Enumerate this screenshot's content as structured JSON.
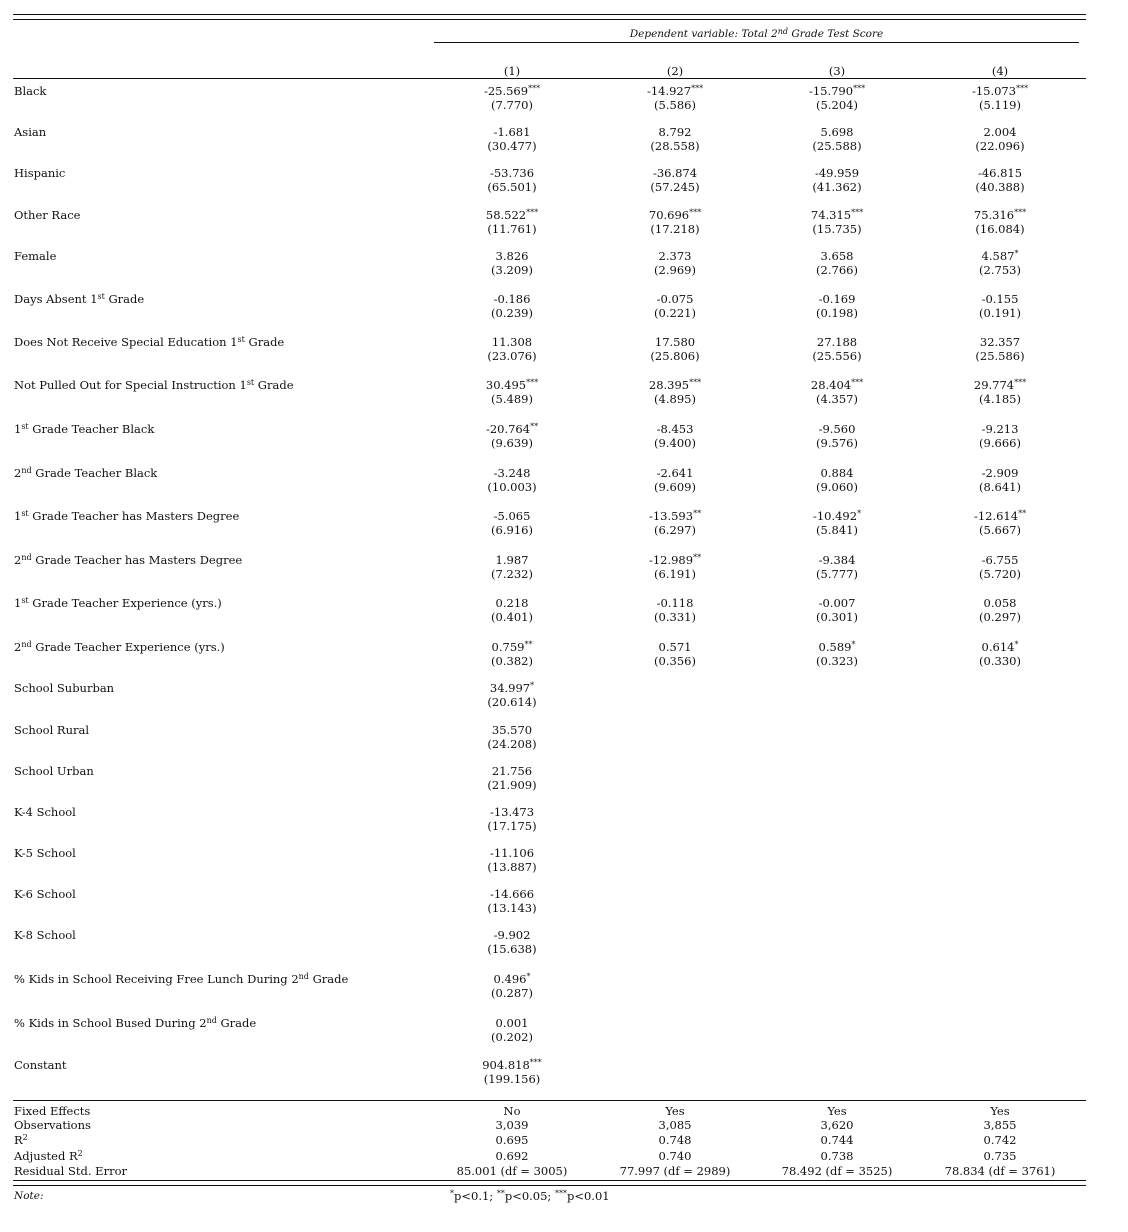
{
  "header": {
    "dependent_variable": "Dependent variable: Total 2nd Grade Test Score",
    "columns": [
      "(1)",
      "(2)",
      "(3)",
      "(4)"
    ]
  },
  "rows": [
    {
      "label": "Black",
      "cells": [
        [
          "-25.569***",
          "(7.770)"
        ],
        [
          "-14.927***",
          "(5.586)"
        ],
        [
          "-15.790***",
          "(5.204)"
        ],
        [
          "-15.073***",
          "(5.119)"
        ]
      ]
    },
    {
      "label": "Asian",
      "cells": [
        [
          "-1.681",
          "(30.477)"
        ],
        [
          "8.792",
          "(28.558)"
        ],
        [
          "5.698",
          "(25.588)"
        ],
        [
          "2.004",
          "(22.096)"
        ]
      ]
    },
    {
      "label": "Hispanic",
      "cells": [
        [
          "-53.736",
          "(65.501)"
        ],
        [
          "-36.874",
          "(57.245)"
        ],
        [
          "-49.959",
          "(41.362)"
        ],
        [
          "-46.815",
          "(40.388)"
        ]
      ]
    },
    {
      "label": "Other Race",
      "cells": [
        [
          "58.522***",
          "(11.761)"
        ],
        [
          "70.696***",
          "(17.218)"
        ],
        [
          "74.315***",
          "(15.735)"
        ],
        [
          "75.316***",
          "(16.084)"
        ]
      ]
    },
    {
      "label": "Female",
      "cells": [
        [
          "3.826",
          "(3.209)"
        ],
        [
          "2.373",
          "(2.969)"
        ],
        [
          "3.658",
          "(2.766)"
        ],
        [
          "4.587*",
          "(2.753)"
        ]
      ]
    },
    {
      "label": "Days Absent 1st Grade",
      "cells": [
        [
          "-0.186",
          "(0.239)"
        ],
        [
          "-0.075",
          "(0.221)"
        ],
        [
          "-0.169",
          "(0.198)"
        ],
        [
          "-0.155",
          "(0.191)"
        ]
      ]
    },
    {
      "label": "Does Not Receive Special Education 1st Grade",
      "cells": [
        [
          "11.308",
          "(23.076)"
        ],
        [
          "17.580",
          "(25.806)"
        ],
        [
          "27.188",
          "(25.556)"
        ],
        [
          "32.357",
          "(25.586)"
        ]
      ]
    },
    {
      "label": "Not Pulled Out for Special Instruction 1st Grade",
      "cells": [
        [
          "30.495***",
          "(5.489)"
        ],
        [
          "28.395***",
          "(4.895)"
        ],
        [
          "28.404***",
          "(4.357)"
        ],
        [
          "29.774***",
          "(4.185)"
        ]
      ]
    },
    {
      "label": "1st Grade Teacher Black",
      "cells": [
        [
          "-20.764**",
          "(9.639)"
        ],
        [
          "-8.453",
          "(9.400)"
        ],
        [
          "-9.560",
          "(9.576)"
        ],
        [
          "-9.213",
          "(9.666)"
        ]
      ]
    },
    {
      "label": "2nd Grade Teacher Black",
      "cells": [
        [
          "-3.248",
          "(10.003)"
        ],
        [
          "-2.641",
          "(9.609)"
        ],
        [
          "0.884",
          "(9.060)"
        ],
        [
          "-2.909",
          "(8.641)"
        ]
      ]
    },
    {
      "label": "1st Grade Teacher has Masters Degree",
      "cells": [
        [
          "-5.065",
          "(6.916)"
        ],
        [
          "-13.593**",
          "(6.297)"
        ],
        [
          "-10.492*",
          "(5.841)"
        ],
        [
          "-12.614**",
          "(5.667)"
        ]
      ]
    },
    {
      "label": "2nd Grade Teacher has Masters Degree",
      "cells": [
        [
          "1.987",
          "(7.232)"
        ],
        [
          "-12.989**",
          "(6.191)"
        ],
        [
          "-9.384",
          "(5.777)"
        ],
        [
          "-6.755",
          "(5.720)"
        ]
      ]
    },
    {
      "label": "1st Grade Teacher Experience (yrs.)",
      "cells": [
        [
          "0.218",
          "(0.401)"
        ],
        [
          "-0.118",
          "(0.331)"
        ],
        [
          "-0.007",
          "(0.301)"
        ],
        [
          "0.058",
          "(0.297)"
        ]
      ]
    },
    {
      "label": "2nd Grade Teacher Experience (yrs.)",
      "cells": [
        [
          "0.759**",
          "(0.382)"
        ],
        [
          "0.571",
          "(0.356)"
        ],
        [
          "0.589*",
          "(0.323)"
        ],
        [
          "0.614*",
          "(0.330)"
        ]
      ]
    },
    {
      "label": "School Suburban",
      "cells": [
        [
          "34.997*",
          "(20.614)"
        ]
      ]
    },
    {
      "label": "School Rural",
      "cells": [
        [
          "35.570",
          "(24.208)"
        ]
      ]
    },
    {
      "label": "School Urban",
      "cells": [
        [
          "21.756",
          "(21.909)"
        ]
      ]
    },
    {
      "label": "K-4 School",
      "cells": [
        [
          "-13.473",
          "(17.175)"
        ]
      ]
    },
    {
      "label": "K-5 School",
      "cells": [
        [
          "-11.106",
          "(13.887)"
        ]
      ]
    },
    {
      "label": "K-6 School",
      "cells": [
        [
          "-14.666",
          "(13.143)"
        ]
      ]
    },
    {
      "label": "K-8 School",
      "cells": [
        [
          "-9.902",
          "(15.638)"
        ]
      ]
    },
    {
      "label": "% Kids in School Receiving Free Lunch During 2nd Grade",
      "cells": [
        [
          "0.496*",
          "(0.287)"
        ]
      ]
    },
    {
      "label": "% Kids in School Bused During 2nd Grade",
      "cells": [
        [
          "0.001",
          "(0.202)"
        ]
      ]
    },
    {
      "label": "Constant",
      "cells": [
        [
          "904.818***",
          "(199.156)"
        ]
      ]
    }
  ],
  "footer": [
    {
      "label": "Fixed Effects",
      "cells": [
        "No",
        "Yes",
        "Yes",
        "Yes"
      ]
    },
    {
      "label": "Observations",
      "cells": [
        "3,039",
        "3,085",
        "3,620",
        "3,855"
      ]
    },
    {
      "label": "R2",
      "cells": [
        "0.695",
        "0.748",
        "0.744",
        "0.742"
      ]
    },
    {
      "label": "Adjusted R2",
      "cells": [
        "0.692",
        "0.740",
        "0.738",
        "0.735"
      ]
    },
    {
      "label": "Residual Std. Error",
      "cells": [
        "85.001 (df = 3005)",
        "77.997 (df = 2989)",
        "78.492 (df = 3525)",
        "78.834 (df = 3761)"
      ]
    }
  ],
  "note": {
    "label": "Note:",
    "text": "*p<0.1; **p<0.05; ***p<0.01"
  }
}
